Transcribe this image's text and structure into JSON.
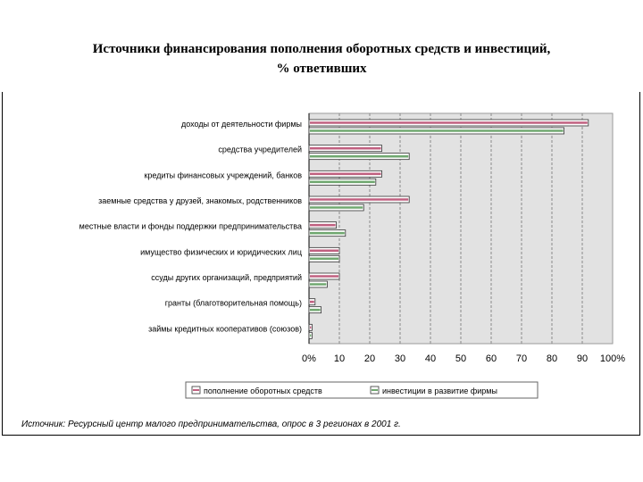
{
  "title_lines": [
    "Источники финансирования пополнения оборотных средств и инвестиций,",
    "% ответивших"
  ],
  "colors": {
    "series_1": "#c06080",
    "series_2": "#70a870",
    "plot_bg": "#e2e2e2",
    "grid": "#8a8a8a"
  },
  "source_note": "Источник: Ресурсный центр малого предпринимательства, опрос в 3 регионах в 2001 г.",
  "chart_data": {
    "type": "bar",
    "orientation": "horizontal",
    "title": "Источники финансирования пополнения оборотных средств и инвестиций, % ответивших",
    "categories": [
      "доходы от деятельности фирмы",
      "средства учредителей",
      "кредиты финансовых учреждений, банков",
      "заемные средства у друзей, знакомых, родственников",
      "местные власти и фонды поддержки предпринимательства",
      "имущество физических и юридических лиц",
      "ссуды других организаций, предприятий",
      "гранты (благотворительная помощь)",
      "займы кредитных кооперативов (союзов)"
    ],
    "series": [
      {
        "name": "пополнение оборотных средств",
        "values": [
          92,
          24,
          24,
          33,
          9,
          10,
          10,
          2,
          1
        ]
      },
      {
        "name": "инвестиции в развитие фирмы",
        "values": [
          84,
          33,
          22,
          18,
          12,
          10,
          6,
          4,
          1
        ]
      }
    ],
    "x_ticks": [
      "0%",
      "10",
      "20",
      "30",
      "40",
      "50",
      "60",
      "70",
      "80",
      "90",
      "100%"
    ],
    "xlim": [
      0,
      100
    ],
    "grid": "vertical dashed",
    "legend": "bottom"
  }
}
